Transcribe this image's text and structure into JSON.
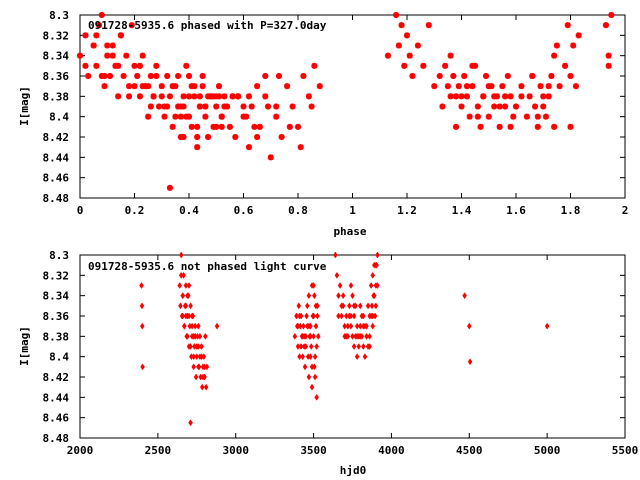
{
  "chart_data": [
    {
      "type": "scatter",
      "title": "091728-5935.6 phased with P=327.0day",
      "xlabel": "phase",
      "ylabel": "I[mag]",
      "xlim": [
        0,
        2
      ],
      "ylim": [
        8.48,
        8.3
      ],
      "xticks": [
        0,
        0.2,
        0.4,
        0.6,
        0.8,
        1,
        1.2,
        1.4,
        1.6,
        1.8,
        2
      ],
      "xtick_labels": [
        "0",
        "0.2",
        "0.4",
        "0.6",
        "0.8",
        "1",
        "1.2",
        "1.4",
        "1.6",
        "1.8",
        "2"
      ],
      "yticks": [
        8.3,
        8.32,
        8.34,
        8.36,
        8.38,
        8.4,
        8.42,
        8.44,
        8.46,
        8.48
      ],
      "ytick_labels": [
        "8.3",
        "8.32",
        "8.34",
        "8.36",
        "8.38",
        "8.4",
        "8.42",
        "8.44",
        "8.46",
        "8.48"
      ],
      "marker": "star",
      "color": "#ff0000",
      "series": [
        {
          "x": [
            0.0,
            0.02,
            0.03,
            0.05,
            0.06,
            0.07,
            0.08,
            0.09,
            0.1,
            0.11,
            0.12,
            0.13,
            0.14,
            0.15,
            0.16,
            0.17,
            0.18,
            0.19,
            0.2,
            0.21,
            0.22,
            0.23,
            0.24,
            0.25,
            0.26,
            0.27,
            0.28,
            0.29,
            0.3,
            0.31,
            0.32,
            0.33,
            0.34,
            0.35,
            0.36,
            0.37,
            0.38,
            0.39,
            0.4,
            0.41,
            0.42,
            0.43,
            0.44,
            0.45,
            0.46,
            0.47,
            0.48,
            0.49,
            0.5,
            0.51,
            0.52,
            0.53,
            0.55,
            0.57,
            0.58,
            0.6,
            0.62,
            0.63,
            0.65,
            0.66,
            0.68,
            0.7,
            0.72,
            0.74,
            0.76,
            0.78,
            0.8,
            0.82,
            0.84,
            0.86,
            0.88,
            0.02,
            0.05,
            0.08,
            0.12,
            0.15,
            0.18,
            0.22,
            0.25,
            0.28,
            0.31,
            0.34,
            0.37,
            0.4,
            0.43,
            0.46,
            0.49,
            0.52,
            0.56,
            0.6,
            0.64,
            0.68,
            0.72,
            0.33,
            0.36,
            0.39,
            0.42,
            0.45,
            0.48,
            0.51,
            0.54,
            0.1,
            0.14,
            0.2,
            0.26,
            0.3,
            0.35,
            0.38,
            0.41,
            0.44,
            0.47,
            0.5,
            0.53,
            0.58,
            0.61,
            0.65,
            0.69,
            0.73,
            0.77,
            0.81,
            0.85,
            0.32,
            0.38,
            0.44,
            0.5,
            0.56,
            0.62,
            0.4,
            0.46,
            0.52,
            0.43,
            0.37,
            0.27,
            0.23,
            0.09,
            0.06
          ],
          "y": [
            8.34,
            8.32,
            8.36,
            8.33,
            8.35,
            8.31,
            8.3,
            8.37,
            8.34,
            8.36,
            8.33,
            8.35,
            8.38,
            8.32,
            8.36,
            8.34,
            8.37,
            8.31,
            8.35,
            8.36,
            8.38,
            8.34,
            8.37,
            8.4,
            8.36,
            8.38,
            8.35,
            8.39,
            8.37,
            8.4,
            8.36,
            8.38,
            8.41,
            8.37,
            8.39,
            8.42,
            8.38,
            8.4,
            8.36,
            8.41,
            8.38,
            8.43,
            8.39,
            8.37,
            8.4,
            8.42,
            8.38,
            8.41,
            8.39,
            8.37,
            8.4,
            8.38,
            8.41,
            8.42,
            8.38,
            8.4,
            8.43,
            8.39,
            8.37,
            8.41,
            8.38,
            8.44,
            8.4,
            8.42,
            8.37,
            8.39,
            8.41,
            8.36,
            8.38,
            8.35,
            8.37,
            8.35,
            8.33,
            8.36,
            8.34,
            8.32,
            8.38,
            8.35,
            8.37,
            8.36,
            8.39,
            8.37,
            8.4,
            8.38,
            8.41,
            8.39,
            8.38,
            8.4,
            8.38,
            8.39,
            8.41,
            8.36,
            8.39,
            8.47,
            8.36,
            8.35,
            8.37,
            8.36,
            8.38,
            8.38,
            8.39,
            8.33,
            8.35,
            8.37,
            8.39,
            8.38,
            8.4,
            8.42,
            8.37,
            8.39,
            8.38,
            8.41,
            8.39,
            8.38,
            8.4,
            8.42,
            8.39,
            8.36,
            8.41,
            8.43,
            8.39,
            8.39,
            8.39,
            8.38,
            8.38,
            8.38,
            8.38,
            8.4,
            8.39,
            8.41,
            8.42,
            8.39,
            8.38,
            8.37,
            8.36,
            8.32
          ]
        },
        {
          "x": [
            1.13,
            1.16,
            1.17,
            1.18,
            1.19,
            1.2,
            1.21,
            1.22,
            1.24,
            1.26,
            1.28,
            1.3,
            1.32,
            1.33,
            1.34,
            1.35,
            1.36,
            1.37,
            1.38,
            1.39,
            1.4,
            1.41,
            1.42,
            1.43,
            1.44,
            1.45,
            1.46,
            1.47,
            1.48,
            1.49,
            1.5,
            1.51,
            1.52,
            1.53,
            1.54,
            1.55,
            1.56,
            1.57,
            1.58,
            1.59,
            1.6,
            1.62,
            1.64,
            1.65,
            1.66,
            1.67,
            1.68,
            1.69,
            1.7,
            1.71,
            1.72,
            1.73,
            1.74,
            1.75,
            1.76,
            1.78,
            1.79,
            1.8,
            1.81,
            1.82,
            1.83,
            1.93,
            1.94,
            1.95,
            1.94,
            1.38,
            1.42,
            1.46,
            1.5,
            1.54,
            1.58,
            1.62,
            1.66,
            1.7,
            1.74,
            1.8,
            1.36,
            1.44,
            1.48,
            1.52,
            1.68,
            1.72,
            1.4,
            1.56
          ],
          "y": [
            8.34,
            8.3,
            8.33,
            8.31,
            8.35,
            8.32,
            8.34,
            8.36,
            8.33,
            8.35,
            8.31,
            8.37,
            8.36,
            8.39,
            8.35,
            8.37,
            8.38,
            8.36,
            8.41,
            8.37,
            8.39,
            8.36,
            8.38,
            8.4,
            8.37,
            8.35,
            8.39,
            8.41,
            8.38,
            8.36,
            8.4,
            8.37,
            8.39,
            8.38,
            8.41,
            8.37,
            8.39,
            8.36,
            8.38,
            8.4,
            8.39,
            8.37,
            8.4,
            8.38,
            8.36,
            8.39,
            8.41,
            8.37,
            8.38,
            8.4,
            8.38,
            8.36,
            8.34,
            8.33,
            8.37,
            8.35,
            8.31,
            8.36,
            8.33,
            8.37,
            8.32,
            8.31,
            8.34,
            8.3,
            8.35,
            8.38,
            8.37,
            8.4,
            8.37,
            8.39,
            8.41,
            8.38,
            8.36,
            8.39,
            8.41,
            8.41,
            8.34,
            8.35,
            8.38,
            8.38,
            8.4,
            8.37,
            8.38,
            8.38
          ]
        }
      ]
    },
    {
      "type": "scatter",
      "title": "091728-5935.6 not phased light curve",
      "xlabel": "hjd0",
      "ylabel": "I[mag]",
      "xlim": [
        2000,
        5500
      ],
      "ylim": [
        8.48,
        8.3
      ],
      "xticks": [
        2000,
        2500,
        3000,
        3500,
        4000,
        4500,
        5000,
        5500
      ],
      "xtick_labels": [
        "2000",
        "2500",
        "3000",
        "3500",
        "4000",
        "4500",
        "5000",
        "5500"
      ],
      "yticks": [
        8.3,
        8.32,
        8.34,
        8.36,
        8.38,
        8.4,
        8.42,
        8.44,
        8.46,
        8.48
      ],
      "ytick_labels": [
        "8.3",
        "8.32",
        "8.34",
        "8.36",
        "8.38",
        "8.4",
        "8.42",
        "8.44",
        "8.46",
        "8.48"
      ],
      "marker": "diamond",
      "color": "#ff0000",
      "series": [
        {
          "x": [
            2395,
            2398,
            2400,
            2402,
            2640,
            2645,
            2650,
            2655,
            2660,
            2665,
            2670,
            2675,
            2680,
            2685,
            2690,
            2695,
            2700,
            2705,
            2710,
            2715,
            2720,
            2725,
            2730,
            2735,
            2740,
            2745,
            2750,
            2755,
            2760,
            2765,
            2770,
            2775,
            2780,
            2785,
            2790,
            2795,
            2800,
            2805,
            2810,
            2815,
            2880,
            2660,
            2670,
            2680,
            2690,
            2700,
            2710,
            2720,
            2730,
            2740,
            2750,
            2760,
            2770,
            2780,
            2790,
            2800,
            2710,
            2700,
            2690,
            2680,
            2650,
            2660,
            2740,
            2760,
            2780,
            2720,
            2730
          ],
          "y": [
            8.33,
            8.35,
            8.37,
            8.41,
            8.33,
            8.35,
            8.3,
            8.36,
            8.34,
            8.32,
            8.37,
            8.35,
            8.33,
            8.38,
            8.36,
            8.34,
            8.39,
            8.37,
            8.35,
            8.4,
            8.38,
            8.36,
            8.41,
            8.39,
            8.37,
            8.42,
            8.4,
            8.38,
            8.39,
            8.41,
            8.4,
            8.42,
            8.39,
            8.43,
            8.41,
            8.4,
            8.42,
            8.38,
            8.43,
            8.41,
            8.37,
            8.36,
            8.37,
            8.35,
            8.38,
            8.36,
            8.39,
            8.37,
            8.4,
            8.38,
            8.39,
            8.41,
            8.38,
            8.4,
            8.42,
            8.41,
            8.465,
            8.33,
            8.34,
            8.36,
            8.32,
            8.34,
            8.38,
            8.37,
            8.39,
            8.36,
            8.38
          ]
        },
        {
          "x": [
            3380,
            3390,
            3395,
            3400,
            3405,
            3410,
            3415,
            3420,
            3425,
            3430,
            3435,
            3440,
            3445,
            3450,
            3455,
            3460,
            3465,
            3470,
            3475,
            3480,
            3485,
            3490,
            3495,
            3500,
            3505,
            3510,
            3515,
            3520,
            3525,
            3530,
            3400,
            3420,
            3440,
            3460,
            3480,
            3500,
            3510,
            3520,
            3410,
            3430,
            3450,
            3470,
            3490,
            3505,
            3525,
            3470,
            3490,
            3500,
            3515,
            3480
          ],
          "y": [
            8.38,
            8.36,
            8.37,
            8.39,
            8.35,
            8.4,
            8.37,
            8.36,
            8.38,
            8.4,
            8.37,
            8.39,
            8.41,
            8.38,
            8.36,
            8.35,
            8.4,
            8.42,
            8.38,
            8.37,
            8.39,
            8.41,
            8.36,
            8.38,
            8.34,
            8.4,
            8.37,
            8.39,
            8.35,
            8.38,
            8.37,
            8.39,
            8.38,
            8.37,
            8.4,
            8.36,
            8.42,
            8.44,
            8.36,
            8.38,
            8.39,
            8.37,
            8.43,
            8.41,
            8.36,
            8.34,
            8.33,
            8.33,
            8.35,
            8.38
          ]
        },
        {
          "x": [
            3640,
            3650,
            3660,
            3670,
            3680,
            3690,
            3700,
            3710,
            3720,
            3730,
            3740,
            3750,
            3760,
            3770,
            3780,
            3790,
            3800,
            3810,
            3820,
            3830,
            3840,
            3850,
            3860,
            3870,
            3880,
            3890,
            3900,
            3910,
            3660,
            3680,
            3700,
            3720,
            3740,
            3760,
            3780,
            3800,
            3820,
            3840,
            3860,
            3880,
            3900,
            3690,
            3710,
            3730,
            3750,
            3770,
            3790,
            3810,
            3830,
            3850,
            3870,
            3890,
            3740,
            3760,
            3780,
            3800,
            3820,
            3860,
            3880,
            3900,
            3895,
            3885,
            3875,
            3910,
            3905
          ],
          "y": [
            8.3,
            8.32,
            8.34,
            8.33,
            8.36,
            8.35,
            8.37,
            8.36,
            8.38,
            8.35,
            8.37,
            8.34,
            8.36,
            8.38,
            8.37,
            8.39,
            8.35,
            8.38,
            8.36,
            8.4,
            8.37,
            8.35,
            8.38,
            8.33,
            8.36,
            8.31,
            8.33,
            8.3,
            8.36,
            8.35,
            8.38,
            8.37,
            8.36,
            8.39,
            8.38,
            8.37,
            8.39,
            8.38,
            8.36,
            8.37,
            8.35,
            8.34,
            8.38,
            8.36,
            8.38,
            8.35,
            8.38,
            8.36,
            8.37,
            8.39,
            8.36,
            8.34,
            8.33,
            8.35,
            8.4,
            8.38,
            8.37,
            8.39,
            8.32,
            8.31,
            8.36,
            8.34,
            8.35,
            8.33,
            8.31
          ]
        },
        {
          "x": [
            4470,
            4500,
            4505,
            5000
          ],
          "y": [
            8.34,
            8.37,
            8.405,
            8.37
          ]
        }
      ]
    }
  ]
}
